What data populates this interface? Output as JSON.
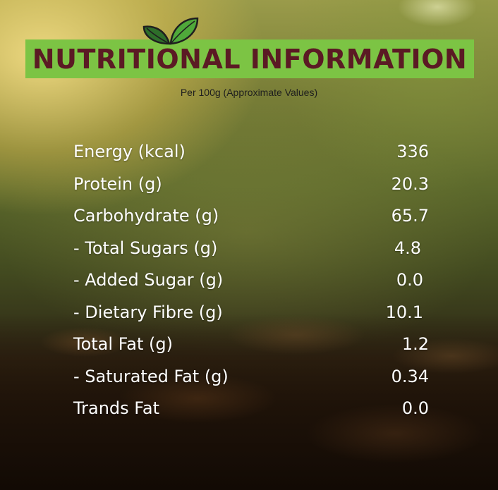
{
  "header": {
    "title": "NUTRITIONAL INFORMATION",
    "subtitle": "Per 100g (Approximate Values)",
    "logo_icon": "two-leaves-icon"
  },
  "colors": {
    "banner": "#7cc444",
    "title_text": "#5b1a24",
    "leaf_dark": "#2e6e2a",
    "leaf_light": "#4fa93a",
    "row_text": "#ffffff"
  },
  "nutrients": [
    {
      "label": "Energy (kcal)",
      "value": "336"
    },
    {
      "label": "Protein (g)",
      "value": "20.3"
    },
    {
      "label": "Carbohydrate (g)",
      "value": "65.7"
    },
    {
      "label": "- Total Sugars (g)",
      "value": "4.8"
    },
    {
      "label": "- Added Sugar (g)",
      "value": "0.0"
    },
    {
      "label": "- Dietary Fibre (g)",
      "value": "10.1"
    },
    {
      "label": "Total Fat (g)",
      "value": "1.2"
    },
    {
      "label": "- Saturated Fat (g)",
      "value": "0.34"
    },
    {
      "label": "Trands Fat",
      "value": "0.0"
    }
  ]
}
